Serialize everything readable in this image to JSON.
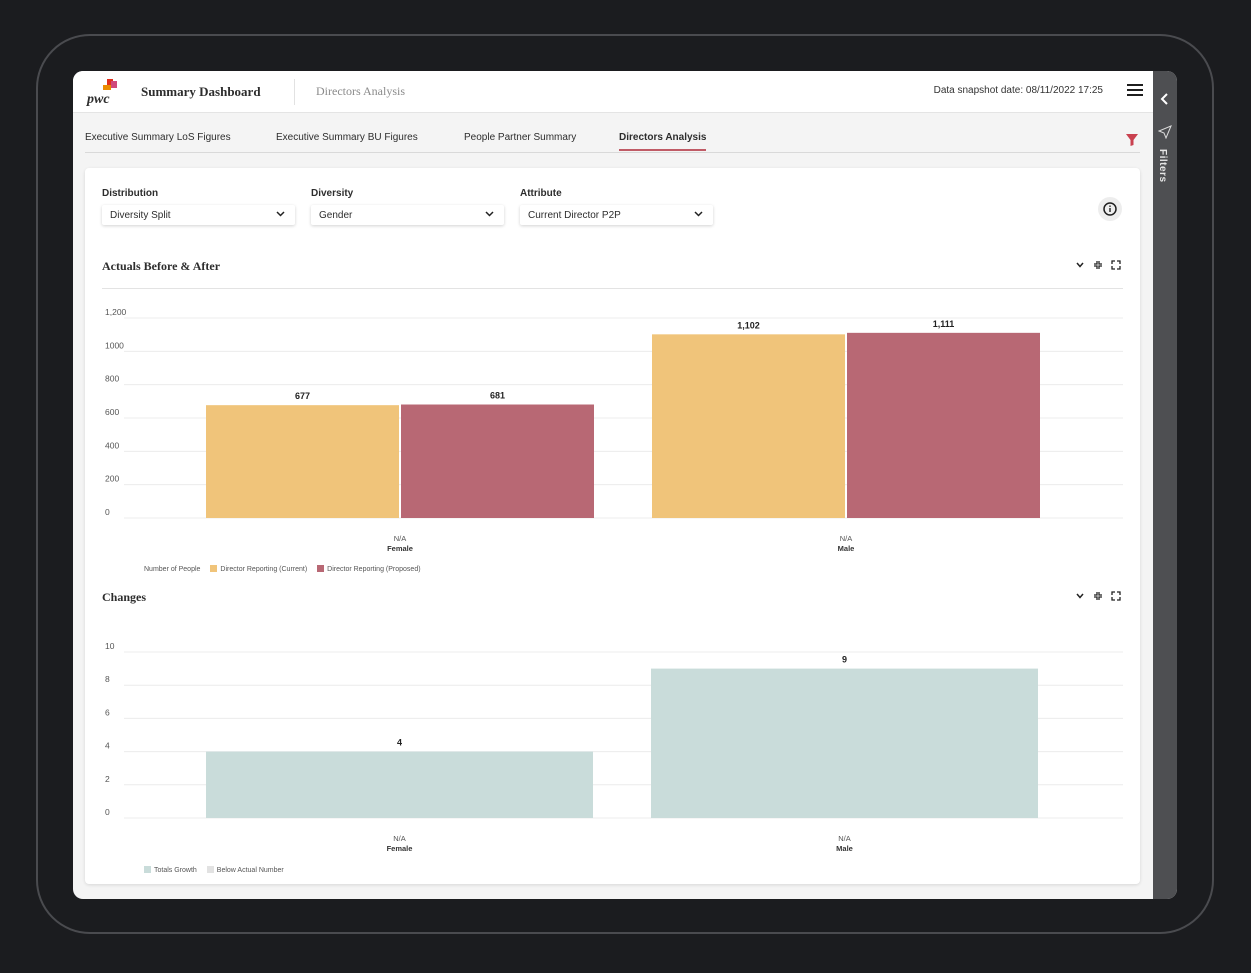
{
  "header": {
    "logo_text": "pwc",
    "app_title": "Summary Dashboard",
    "page_name": "Directors Analysis",
    "snapshot": "Data snapshot date: 08/11/2022 17:25"
  },
  "tabs": [
    {
      "label": "Executive Summary LoS Figures",
      "active": false
    },
    {
      "label": "Executive Summary BU Figures",
      "active": false
    },
    {
      "label": "People Partner Summary",
      "active": false
    },
    {
      "label": "Directors Analysis",
      "active": true
    }
  ],
  "filter_rail": {
    "label": "Filters"
  },
  "controls": [
    {
      "label": "Distribution",
      "value": "Diversity Split"
    },
    {
      "label": "Diversity",
      "value": "Gender"
    },
    {
      "label": "Attribute",
      "value": "Current Director P2P"
    }
  ],
  "colors": {
    "current": "#f0c47a",
    "proposed": "#b86874",
    "growth": "#c9dcda",
    "below": "#e2e2e2",
    "accent": "#c05b66"
  },
  "sections": {
    "actuals_title": "Actuals Before & After",
    "changes_title": "Changes"
  },
  "chart_data": [
    {
      "type": "bar",
      "title": "Actuals Before & After",
      "categories": [
        {
          "label": "N/A",
          "group": "Female"
        },
        {
          "label": "N/A",
          "group": "Male"
        }
      ],
      "series": [
        {
          "name": "Director Reporting (Current)",
          "values": [
            677,
            1102
          ]
        },
        {
          "name": "Director Reporting (Proposed)",
          "values": [
            681,
            1111
          ]
        }
      ],
      "yticks": [
        "0",
        "200",
        "400",
        "600",
        "800",
        "1000",
        "1,200"
      ],
      "ylim": [
        0,
        1200
      ],
      "value_labels": [
        "677",
        "681",
        "1,102",
        "1,111"
      ],
      "legend_title": "Number of People",
      "legend_position": "bottom-left",
      "grid": true
    },
    {
      "type": "bar",
      "title": "Changes",
      "categories": [
        {
          "label": "N/A",
          "group": "Female"
        },
        {
          "label": "N/A",
          "group": "Male"
        }
      ],
      "series": [
        {
          "name": "Totals Growth",
          "values": [
            4,
            9
          ]
        },
        {
          "name": "Below Actual Number",
          "values": [
            0,
            0
          ]
        }
      ],
      "yticks": [
        "0",
        "2",
        "4",
        "6",
        "8",
        "10"
      ],
      "ylim": [
        0,
        10
      ],
      "value_labels": [
        "4",
        "9"
      ],
      "legend_position": "bottom-left",
      "grid": true
    }
  ]
}
